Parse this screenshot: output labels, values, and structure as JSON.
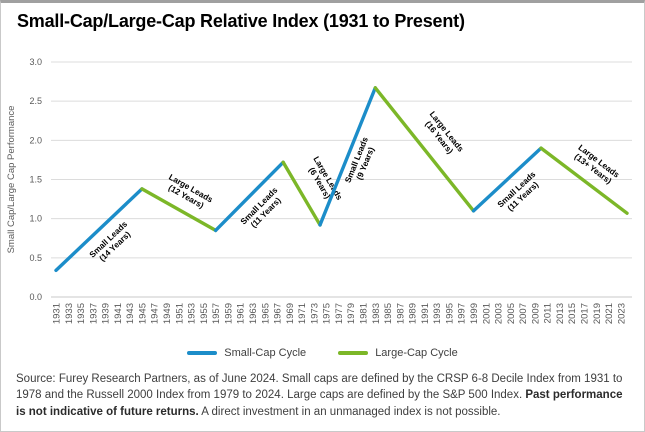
{
  "title": "Small-Cap/Large-Cap Relative Index (1931 to Present)",
  "legend": {
    "small_label": "Small-Cap Cycle",
    "large_label": "Large-Cap Cycle"
  },
  "footer": {
    "text_before": "Source: Furey Research Partners, as of June 2024. Small caps are defined by the CRSP 6-8 Decile Index from 1931 to 1978 and the Russell 2000 Index from 1979 to 2024. Large caps are defined by the S&P 500 Index. ",
    "text_bold": "Past performance is not indicative of future returns.",
    "text_after": " A direct investment in an unmanaged index is not possible."
  },
  "chart_data": {
    "type": "line",
    "title": "Small-Cap/Large-Cap Relative Index (1931 to Present)",
    "xlabel": "",
    "ylabel": "Small Cap/Large Cap Performance",
    "ylim": [
      0.0,
      3.0
    ],
    "y_ticks": [
      0.0,
      0.5,
      1.0,
      1.5,
      2.0,
      2.5,
      3.0
    ],
    "x_range": [
      1931,
      2024
    ],
    "x_tick_years": [
      1931,
      1933,
      1935,
      1937,
      1939,
      1941,
      1943,
      1945,
      1947,
      1949,
      1951,
      1953,
      1955,
      1957,
      1959,
      1961,
      1963,
      1965,
      1967,
      1969,
      1971,
      1973,
      1975,
      1977,
      1979,
      1981,
      1983,
      1985,
      1987,
      1989,
      1991,
      1993,
      1995,
      1997,
      1999,
      2001,
      2003,
      2005,
      2007,
      2009,
      2011,
      2013,
      2015,
      2017,
      2019,
      2021,
      2023
    ],
    "grid": true,
    "legend_position": "bottom",
    "colors": {
      "small": "#1c8dc9",
      "large": "#7cb728"
    },
    "series": [
      {
        "name": "Small-Cap Cycle",
        "color_key": "small"
      },
      {
        "name": "Large-Cap Cycle",
        "color_key": "large"
      }
    ],
    "segments": [
      {
        "cycle": "small",
        "points": [
          [
            1931,
            0.34
          ],
          [
            1945,
            1.38
          ]
        ],
        "label_lines": [
          "Small Leads",
          "(14 Years)"
        ],
        "label_offset": 18
      },
      {
        "cycle": "large",
        "points": [
          [
            1945,
            1.38
          ],
          [
            1957,
            0.85
          ]
        ],
        "label_lines": [
          "Large Leads",
          "(12 Years)"
        ],
        "label_offset": 20
      },
      {
        "cycle": "small",
        "points": [
          [
            1957,
            0.85
          ],
          [
            1968,
            1.72
          ]
        ],
        "label_lines": [
          "Small Leads",
          "(11 Years)"
        ],
        "label_offset": 18
      },
      {
        "cycle": "large",
        "points": [
          [
            1968,
            1.72
          ],
          [
            1974,
            0.92
          ]
        ],
        "label_lines": [
          "Large Leads",
          "(6 Years)"
        ],
        "label_offset": 26
      },
      {
        "cycle": "small",
        "points": [
          [
            1974,
            0.92
          ],
          [
            1983,
            2.67
          ]
        ],
        "label_lines": [
          "Small Leads",
          "(9 Years)"
        ],
        "label_offset": 14
      },
      {
        "cycle": "large",
        "points": [
          [
            1983,
            2.67
          ],
          [
            1999,
            1.1
          ]
        ],
        "label_lines": [
          "Large Leads",
          "(16 Years)"
        ],
        "label_offset": 24
      },
      {
        "cycle": "small",
        "points": [
          [
            1999,
            1.1
          ],
          [
            2010,
            1.9
          ]
        ],
        "label_lines": [
          "Small Leads",
          "(11 Years)"
        ],
        "label_offset": 18
      },
      {
        "cycle": "large",
        "points": [
          [
            2010,
            1.9
          ],
          [
            2024,
            1.07
          ]
        ],
        "label_lines": [
          "Large Leads",
          "(13+ Years)"
        ],
        "label_offset": 20
      }
    ]
  }
}
